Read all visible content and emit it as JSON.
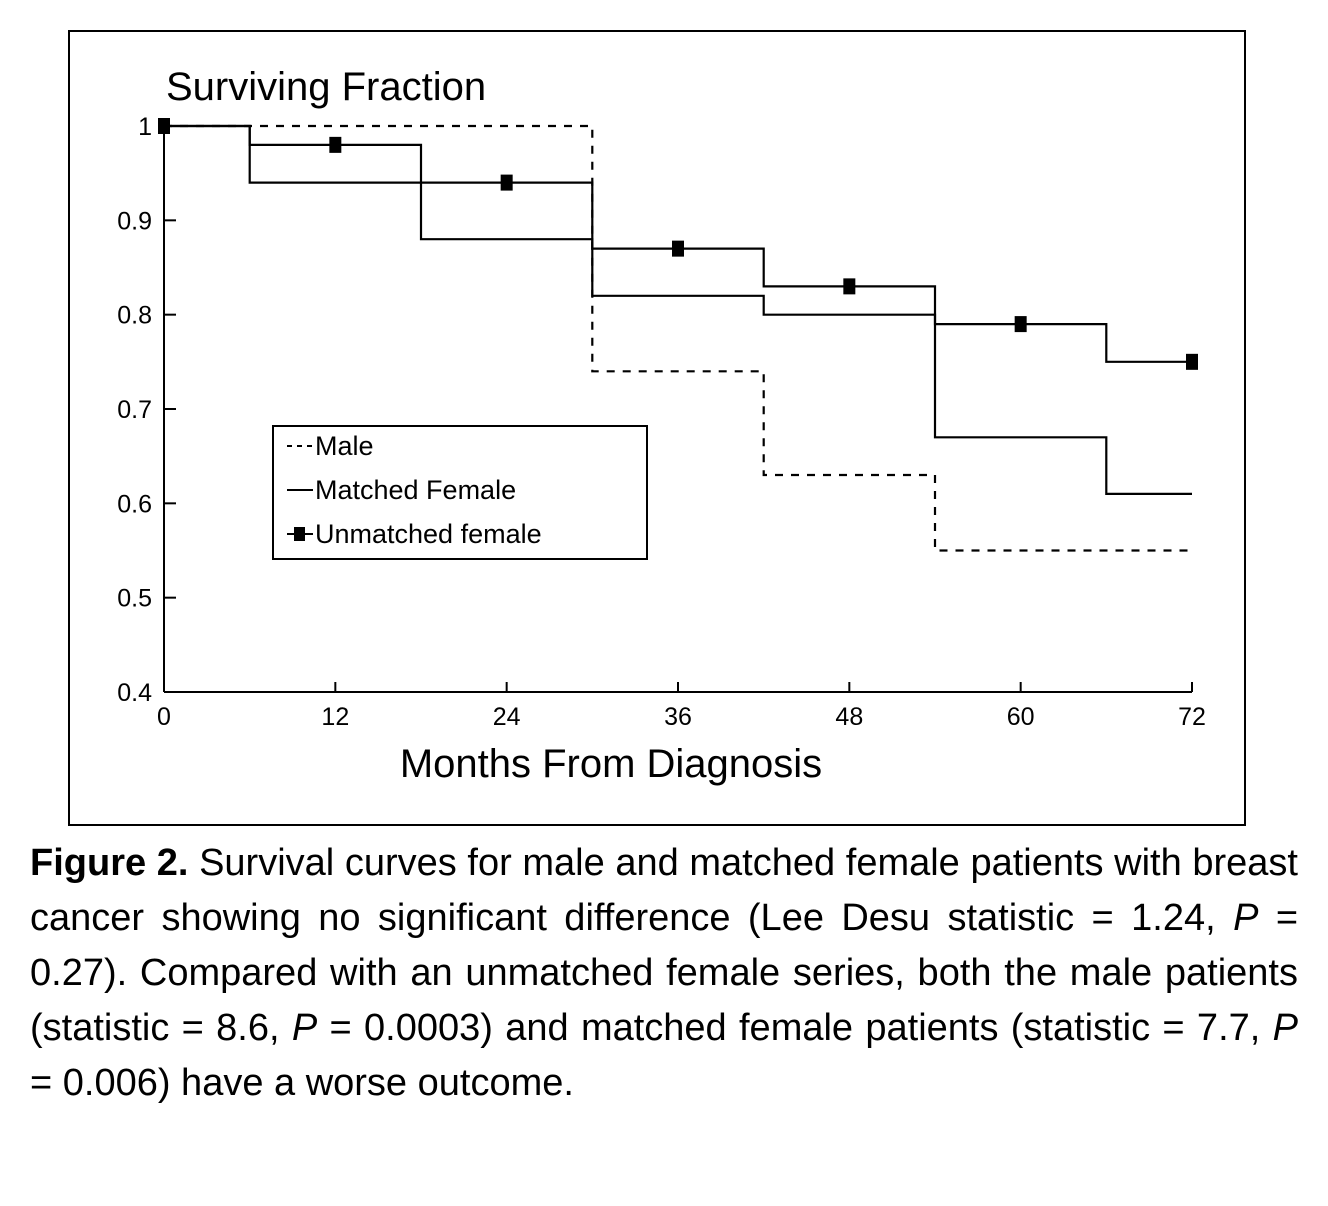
{
  "chart_data": {
    "type": "line",
    "subtype": "step (Kaplan-Meier style survival curves)",
    "title": "Surviving Fraction",
    "xlabel": "Months From Diagnosis",
    "ylabel": "",
    "xlim": [
      0,
      72
    ],
    "ylim": [
      0.4,
      1.0
    ],
    "xticks": [
      0,
      12,
      24,
      36,
      48,
      60,
      72
    ],
    "yticks": [
      0.4,
      0.5,
      0.6,
      0.7,
      0.8,
      0.9,
      1
    ],
    "xtick_labels": [
      "0",
      "12",
      "24",
      "36",
      "48",
      "60",
      "72"
    ],
    "ytick_labels": [
      "0.4",
      "0.5",
      "0.6",
      "0.7",
      "0.8",
      "0.9",
      "1"
    ],
    "grid": false,
    "legend_position": "center-left",
    "series": [
      {
        "name": "Male",
        "style": "dashed",
        "color": "#000000",
        "x": [
          0,
          30,
          30,
          42,
          42,
          54,
          54,
          72
        ],
        "y": [
          1.0,
          1.0,
          0.74,
          0.74,
          0.63,
          0.63,
          0.55,
          0.55
        ]
      },
      {
        "name": "Matched Female",
        "style": "solid",
        "color": "#000000",
        "x": [
          0,
          6,
          6,
          18,
          18,
          30,
          30,
          42,
          42,
          54,
          54,
          66,
          66,
          72
        ],
        "y": [
          1.0,
          1.0,
          0.94,
          0.94,
          0.88,
          0.88,
          0.82,
          0.82,
          0.8,
          0.8,
          0.67,
          0.67,
          0.61,
          0.61
        ]
      },
      {
        "name": "Unmatched female",
        "style": "solid-with-square-markers",
        "color": "#000000",
        "x": [
          0,
          6,
          6,
          18,
          18,
          30,
          30,
          42,
          42,
          54,
          54,
          66,
          66,
          72
        ],
        "y": [
          1.0,
          1.0,
          0.98,
          0.98,
          0.94,
          0.94,
          0.87,
          0.87,
          0.83,
          0.83,
          0.79,
          0.79,
          0.75,
          0.75
        ],
        "markers": {
          "x": [
            0,
            12,
            24,
            36,
            48,
            60,
            72
          ],
          "y": [
            1.0,
            0.98,
            0.94,
            0.87,
            0.83,
            0.79,
            0.75
          ]
        }
      }
    ]
  },
  "caption": {
    "label": "Figure 2.",
    "part1": " Survival curves for male and matched female patients with breast cancer showing no significant difference (Lee Desu statistic = 1.24, ",
    "p": "P",
    "part2": " = 0.27). Compared with an unmatched female series, both the male patients (statistic = 8.6, ",
    "part3": " = 0.0003) and matched female patients (statistic = 7.7, ",
    "part4": " = 0.006) have a worse outcome."
  }
}
